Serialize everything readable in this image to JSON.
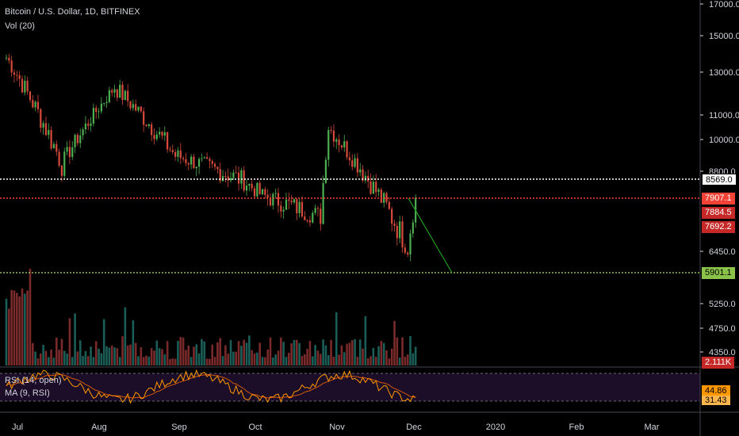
{
  "legend": {
    "title": "Bitcoin / U.S. Dollar, 1D, BITFINEX",
    "volume": "Vol (20)",
    "rsi": "RSI (14, open)",
    "rsi_ma": "MA (9, RSI)"
  },
  "price_axis": {
    "ticks": [
      "17000.0",
      "15000.0",
      "13000.0",
      "11000.0",
      "10000.0",
      "8800.0",
      "6450.0",
      "5250.0",
      "4750.0",
      "4350.0"
    ]
  },
  "price_labels": {
    "white_level": "8569.0",
    "red_level": "7907.1",
    "last_price": "7884.5",
    "open_price": "7692.2",
    "green_level": "5901.1",
    "volume_value": "2.111K",
    "rsi_value": "44.86",
    "rsi_ma_value": "31.43"
  },
  "time_axis": {
    "ticks": [
      "Jul",
      "Aug",
      "Sep",
      "Oct",
      "Nov",
      "Dec",
      "2020",
      "Feb",
      "Mar"
    ]
  },
  "colors": {
    "background": "#000000",
    "up": "#26a69a",
    "down": "#ef5350",
    "candle_up": "#4caf50",
    "candle_down": "#d84a3c",
    "white_line": "#ffffff",
    "red_line": "#f44336",
    "green_line": "#8bc34a",
    "trend_line": "#2e9e2e",
    "rsi_line": "#ff9800",
    "rsi_ma_line": "#ff6d00",
    "rsi_band": "#1f0f2b"
  },
  "chart_data": {
    "type": "candlestick",
    "symbol": "Bitcoin / U.S. Dollar",
    "interval": "1D",
    "exchange": "BITFINEX",
    "price_range": [
      4100,
      17000
    ],
    "horizontal_levels": [
      8569.0,
      7907.1,
      5901.1
    ],
    "trend_line": {
      "from": [
        "2019-11-27",
        7907
      ],
      "to": [
        "2019-12-21",
        5901
      ]
    },
    "key_prices": [
      {
        "date": "2019-06-26",
        "price": 13800
      },
      {
        "date": "2019-07-17",
        "price": 9100
      },
      {
        "date": "2019-08-06",
        "price": 12300
      },
      {
        "date": "2019-08-29",
        "price": 9400
      },
      {
        "date": "2019-09-24",
        "price": 8500
      },
      {
        "date": "2019-10-01",
        "price": 8000
      },
      {
        "date": "2019-10-23",
        "price": 7400
      },
      {
        "date": "2019-10-26",
        "price": 10500
      },
      {
        "date": "2019-11-25",
        "price": 6600
      },
      {
        "date": "2019-11-28",
        "price": 7884.5
      }
    ]
  }
}
